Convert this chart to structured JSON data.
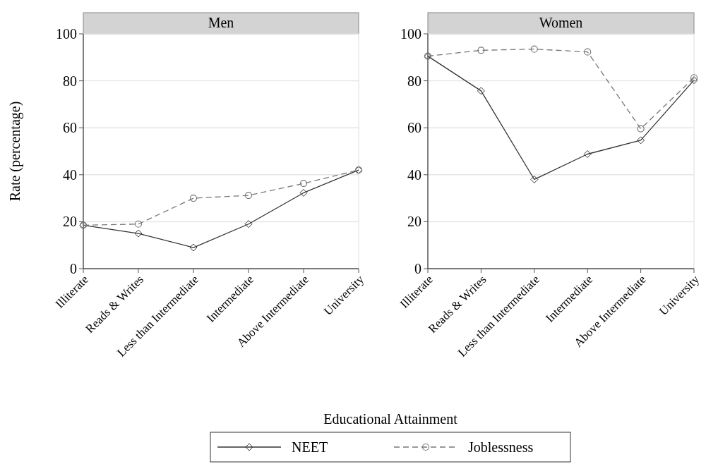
{
  "chart_data": [
    {
      "type": "line",
      "title": "Men",
      "ylabel": "Rate (percentage)",
      "xlabel": "Educational Attainment",
      "categories": [
        "Illiterate",
        "Reads & Writes",
        "Less than Intermediate",
        "Intermediate",
        "Above Intermediate",
        "University"
      ],
      "ylim": [
        0,
        100
      ],
      "yticks": [
        0,
        20,
        40,
        60,
        80,
        100
      ],
      "grid": "y",
      "legend": "bottom",
      "series": [
        {
          "name": "NEET",
          "color": "#333333",
          "marker": "diamond",
          "line_style": "solid",
          "values": [
            18.5,
            15,
            9,
            19,
            32.3,
            42
          ]
        },
        {
          "name": "Joblessness",
          "color": "#777777",
          "marker": "circle",
          "line_style": "dashed",
          "values": [
            18.5,
            19,
            30,
            31.2,
            36.3,
            42
          ]
        }
      ]
    },
    {
      "type": "line",
      "title": "Women",
      "categories": [
        "Illiterate",
        "Reads & Writes",
        "Less than Intermediate",
        "Intermediate",
        "Above Intermediate",
        "University"
      ],
      "ylim": [
        0,
        100
      ],
      "yticks": [
        0,
        20,
        40,
        60,
        80,
        100
      ],
      "grid": "y",
      "series": [
        {
          "color": "#333333",
          "marker": "diamond",
          "line_style": "solid",
          "values": [
            90.5,
            75.7,
            38,
            48.8,
            54.7,
            80.3
          ]
        },
        {
          "color": "#777777",
          "marker": "circle",
          "line_style": "dashed",
          "values": [
            90.5,
            93,
            93.5,
            92.3,
            59.6,
            81.3
          ]
        }
      ]
    }
  ]
}
